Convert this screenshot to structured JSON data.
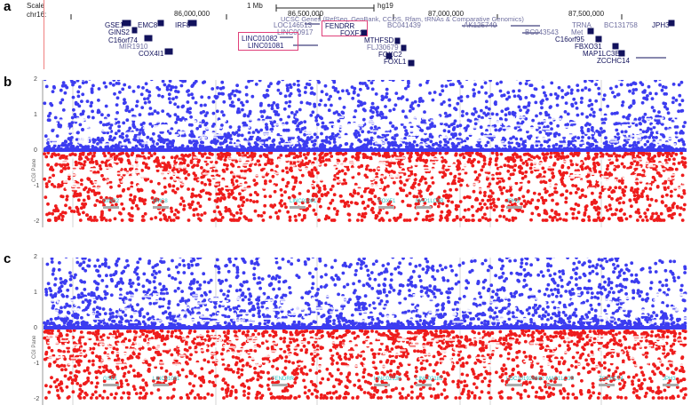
{
  "panels": [
    "a",
    "b",
    "c"
  ],
  "browser": {
    "scale_label": "Scale",
    "chrom_label": "chr16:",
    "scale_bar_label": "1 Mb",
    "assembly": "hg19",
    "positions": [
      "86,000,000",
      "86,500,000",
      "87,000,000",
      "87,500,000"
    ],
    "track_title": "UCSC Genes (RefSeq, GenBank, CCDS, Rfam, tRNAs & Comparative Genomics)",
    "genes": [
      "GSE1",
      "EMC8",
      "IRF8",
      "GINS2",
      "C16orf74",
      "MIR1910",
      "COX4I1",
      "LOC146513",
      "LINC00917",
      "LINC01082",
      "LINC01081",
      "FENDRR",
      "FOXF1",
      "BC041439",
      "MTHFSD",
      "FLJ30679",
      "FOXC2",
      "FOXL1",
      "AK125749",
      "BC043543",
      "TRNA",
      "Met",
      "C16orf95",
      "FBXO31",
      "MAP1LC3B",
      "ZCCHC14",
      "BC131758",
      "JPH3"
    ],
    "highlight_color": "#e0407a"
  },
  "plots": {
    "y_axis_title": "CGI Pane",
    "y_ticks": [
      "2",
      "1",
      "0",
      "-1",
      "-2"
    ],
    "colors": {
      "positive": "#3c3cf0",
      "negative": "#ee1c1c",
      "label": "#ffffff",
      "gene": "#2bc3c3"
    },
    "b_gene_labels": [
      "GINS2",
      "EMC8",
      "LINC01081",
      "FOXF1",
      "MAP1LC3B",
      "JPH3"
    ],
    "c_gene_labels": [
      "GSE1",
      "LINC01081",
      "FENDRR",
      "LINC02139",
      "LINC02181",
      "LOC101928682",
      "MAP1LC3B",
      "ZCCHC14",
      "JPH3"
    ]
  }
}
